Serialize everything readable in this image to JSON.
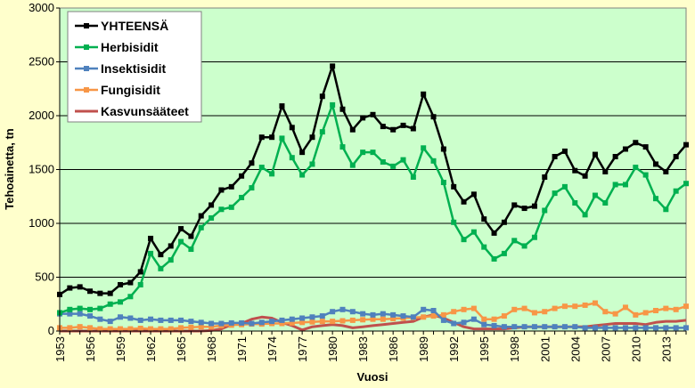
{
  "chart_data": {
    "type": "line",
    "title": "",
    "xlabel": "Vuosi",
    "ylabel": "Tehoainetta, tn",
    "ylim": [
      0,
      3000
    ],
    "yticks": [
      "0",
      "500",
      "1000",
      "1500",
      "2000",
      "2500",
      "3000"
    ],
    "xlim": [
      1953,
      2015
    ],
    "xticks": [
      "1953",
      "1956",
      "1959",
      "1962",
      "1965",
      "1968",
      "1971",
      "1974",
      "1977",
      "1980",
      "1983",
      "1986",
      "1989",
      "1992",
      "1995",
      "1998",
      "2001",
      "2004",
      "2007",
      "2010",
      "2013"
    ],
    "grid": "horizontal",
    "legend_position": "top-left",
    "x": [
      1953,
      1954,
      1955,
      1956,
      1957,
      1958,
      1959,
      1960,
      1961,
      1962,
      1963,
      1964,
      1965,
      1966,
      1967,
      1968,
      1969,
      1970,
      1971,
      1972,
      1973,
      1974,
      1975,
      1976,
      1977,
      1978,
      1979,
      1980,
      1981,
      1982,
      1983,
      1984,
      1985,
      1986,
      1987,
      1988,
      1989,
      1990,
      1991,
      1992,
      1993,
      1994,
      1995,
      1996,
      1997,
      1998,
      1999,
      2000,
      2001,
      2002,
      2003,
      2004,
      2005,
      2006,
      2007,
      2008,
      2009,
      2010,
      2011,
      2012,
      2013,
      2014,
      2015
    ],
    "series": [
      {
        "name": "YHTEENSÄ",
        "color": "#000000",
        "marker": "square",
        "values": [
          340,
          400,
          410,
          370,
          350,
          350,
          430,
          450,
          550,
          860,
          710,
          790,
          950,
          880,
          1070,
          1170,
          1310,
          1340,
          1440,
          1560,
          1800,
          1800,
          2090,
          1890,
          1660,
          1800,
          2180,
          2460,
          2060,
          1870,
          1980,
          2010,
          1900,
          1870,
          1910,
          1880,
          2200,
          1990,
          1690,
          1340,
          1200,
          1270,
          1040,
          910,
          1010,
          1170,
          1140,
          1160,
          1430,
          1620,
          1670,
          1490,
          1440,
          1640,
          1480,
          1620,
          1690,
          1750,
          1710,
          1550,
          1480,
          1620,
          1730
        ]
      },
      {
        "name": "Herbisidit",
        "color": "#00b050",
        "marker": "square",
        "values": [
          170,
          200,
          210,
          200,
          210,
          250,
          270,
          320,
          430,
          720,
          580,
          660,
          830,
          760,
          960,
          1050,
          1130,
          1150,
          1240,
          1330,
          1520,
          1460,
          1790,
          1610,
          1450,
          1550,
          1850,
          2100,
          1710,
          1540,
          1660,
          1660,
          1570,
          1530,
          1590,
          1430,
          1700,
          1580,
          1380,
          1010,
          850,
          920,
          780,
          670,
          720,
          840,
          790,
          870,
          1120,
          1280,
          1340,
          1190,
          1080,
          1260,
          1190,
          1360,
          1360,
          1520,
          1450,
          1230,
          1130,
          1300,
          1370
        ]
      },
      {
        "name": "Insektisidit",
        "color": "#4f81bd",
        "marker": "square",
        "values": [
          160,
          160,
          160,
          140,
          110,
          90,
          130,
          120,
          100,
          110,
          100,
          100,
          100,
          90,
          80,
          70,
          70,
          75,
          75,
          70,
          80,
          90,
          100,
          110,
          120,
          130,
          140,
          180,
          200,
          180,
          160,
          150,
          160,
          150,
          140,
          130,
          200,
          190,
          100,
          70,
          80,
          110,
          60,
          50,
          40,
          40,
          40,
          40,
          40,
          40,
          40,
          40,
          30,
          30,
          30,
          30,
          30,
          30,
          30,
          30,
          30,
          30,
          30
        ]
      },
      {
        "name": "Fungisidit",
        "color": "#f79646",
        "marker": "square",
        "values": [
          30,
          30,
          40,
          30,
          20,
          20,
          20,
          20,
          25,
          20,
          20,
          20,
          30,
          35,
          40,
          40,
          50,
          55,
          60,
          65,
          65,
          70,
          70,
          75,
          80,
          85,
          90,
          90,
          95,
          100,
          105,
          110,
          110,
          115,
          120,
          125,
          130,
          140,
          150,
          180,
          200,
          210,
          110,
          110,
          140,
          200,
          210,
          170,
          180,
          210,
          230,
          230,
          240,
          260,
          180,
          160,
          220,
          150,
          170,
          190,
          210,
          200,
          230
        ]
      },
      {
        "name": "Kasvunsääteet",
        "color": "#c0504d",
        "marker": "none",
        "values": [
          0,
          0,
          0,
          0,
          0,
          0,
          0,
          0,
          0,
          0,
          0,
          0,
          0,
          0,
          0,
          5,
          20,
          60,
          70,
          110,
          130,
          120,
          80,
          50,
          10,
          40,
          50,
          60,
          50,
          30,
          40,
          50,
          60,
          70,
          80,
          90,
          130,
          150,
          120,
          80,
          40,
          20,
          20,
          20,
          20,
          30,
          40,
          40,
          40,
          40,
          40,
          40,
          40,
          50,
          60,
          70,
          70,
          70,
          60,
          80,
          90,
          90,
          100
        ]
      }
    ]
  }
}
